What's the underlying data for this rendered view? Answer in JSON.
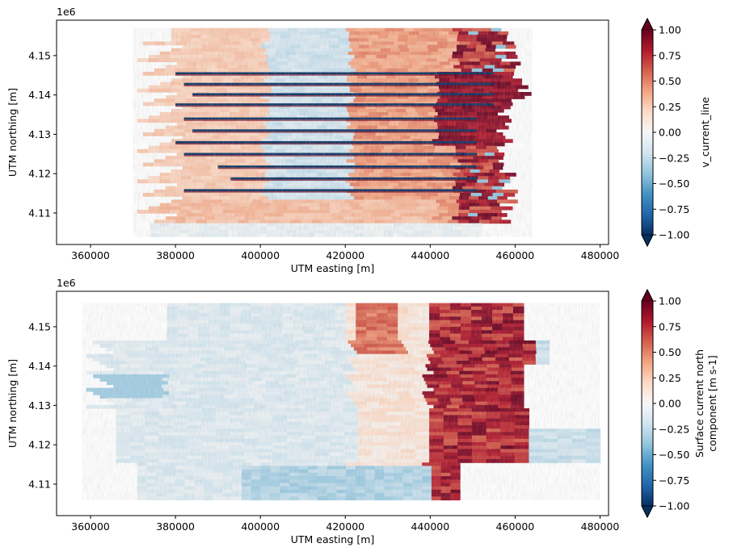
{
  "chart_data": [
    {
      "type": "heatmap",
      "title": "",
      "xlabel": "UTM easting [m]",
      "ylabel": "UTM northing [m]",
      "y_offset_label": "1e6",
      "xlim": [
        352000,
        482000
      ],
      "ylim": [
        4.102,
        4.159
      ],
      "xticks": [
        360000,
        380000,
        400000,
        420000,
        440000,
        460000,
        480000
      ],
      "xtick_labels": [
        "360000",
        "380000",
        "400000",
        "420000",
        "440000",
        "460000",
        "480000"
      ],
      "yticks": [
        4.11,
        4.12,
        4.13,
        4.14,
        4.15
      ],
      "ytick_labels": [
        "4.11",
        "4.12",
        "4.13",
        "4.14",
        "4.15"
      ],
      "colorbar": {
        "label": "v_current_line",
        "cmap": "RdBu_r",
        "vmin": -1.0,
        "vmax": 1.0,
        "extend": "both",
        "ticks": [
          1.0,
          0.75,
          0.5,
          0.25,
          0.0,
          -0.25,
          -0.5,
          -0.75,
          -1.0
        ],
        "tick_labels": [
          "1.00",
          "0.75",
          "0.50",
          "0.25",
          "0.00",
          "−0.25",
          "−0.50",
          "−0.75",
          "−1.00"
        ]
      },
      "data_extent": {
        "x": [
          370000,
          464000
        ],
        "y": [
          4.104,
          4.157
        ]
      },
      "stripe_rows_y": [
        4.1455,
        4.1428,
        4.1402,
        4.1376,
        4.134,
        4.131,
        4.128,
        4.125,
        4.1218,
        4.1188,
        4.1158
      ],
      "grid": false
    },
    {
      "type": "heatmap",
      "title": "",
      "xlabel": "UTM easting [m]",
      "ylabel": "UTM northing [m]",
      "y_offset_label": "1e6",
      "xlim": [
        352000,
        482000
      ],
      "ylim": [
        4.102,
        4.159
      ],
      "xticks": [
        360000,
        380000,
        400000,
        420000,
        440000,
        460000,
        480000
      ],
      "xtick_labels": [
        "360000",
        "380000",
        "400000",
        "420000",
        "440000",
        "460000",
        "480000"
      ],
      "yticks": [
        4.11,
        4.12,
        4.13,
        4.14,
        4.15
      ],
      "ytick_labels": [
        "4.11",
        "4.12",
        "4.13",
        "4.14",
        "4.15"
      ],
      "colorbar": {
        "label_lines": [
          "Surface current north",
          "component [m s-1]"
        ],
        "cmap": "RdBu_r",
        "vmin": -1.0,
        "vmax": 1.0,
        "extend": "both",
        "ticks": [
          1.0,
          0.75,
          0.5,
          0.25,
          0.0,
          -0.25,
          -0.5,
          -0.75,
          -1.0
        ],
        "tick_labels": [
          "1.00",
          "0.75",
          "0.50",
          "0.25",
          "0.00",
          "−0.25",
          "−0.50",
          "−0.75",
          "−1.00"
        ]
      },
      "data_extent": {
        "x": [
          358000,
          480000
        ],
        "y": [
          4.106,
          4.156
        ]
      },
      "grid": false
    }
  ]
}
